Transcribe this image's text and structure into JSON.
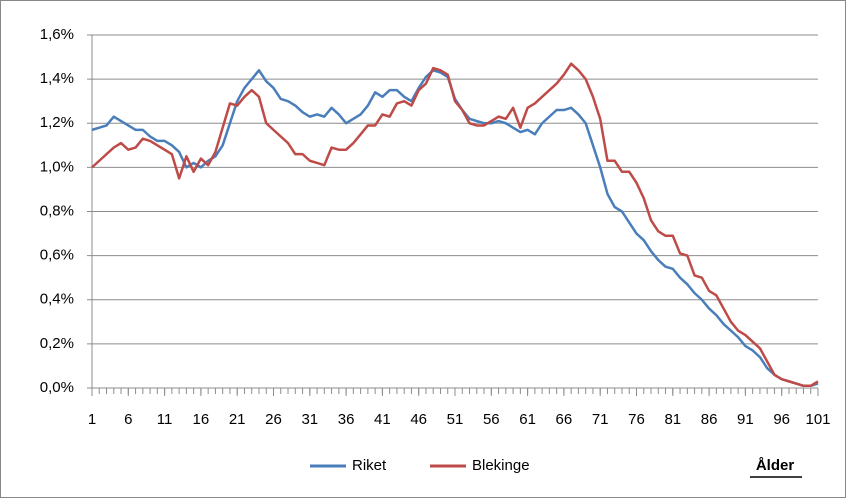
{
  "chart_data": {
    "type": "line",
    "x": [
      1,
      2,
      3,
      4,
      5,
      6,
      7,
      8,
      9,
      10,
      11,
      12,
      13,
      14,
      15,
      16,
      17,
      18,
      19,
      20,
      21,
      22,
      23,
      24,
      25,
      26,
      27,
      28,
      29,
      30,
      31,
      32,
      33,
      34,
      35,
      36,
      37,
      38,
      39,
      40,
      41,
      42,
      43,
      44,
      45,
      46,
      47,
      48,
      49,
      50,
      51,
      52,
      53,
      54,
      55,
      56,
      57,
      58,
      59,
      60,
      61,
      62,
      63,
      64,
      65,
      66,
      67,
      68,
      69,
      70,
      71,
      72,
      73,
      74,
      75,
      76,
      77,
      78,
      79,
      80,
      81,
      82,
      83,
      84,
      85,
      86,
      87,
      88,
      89,
      90,
      91,
      92,
      93,
      94,
      95,
      96,
      97,
      98,
      99,
      100,
      101
    ],
    "series": [
      {
        "name": "Riket",
        "color": "#4a7ebb",
        "values": [
          1.17,
          1.18,
          1.19,
          1.23,
          1.21,
          1.19,
          1.17,
          1.17,
          1.14,
          1.12,
          1.12,
          1.1,
          1.07,
          1.0,
          1.02,
          1.0,
          1.03,
          1.05,
          1.1,
          1.2,
          1.3,
          1.36,
          1.4,
          1.44,
          1.39,
          1.36,
          1.31,
          1.3,
          1.28,
          1.25,
          1.23,
          1.24,
          1.23,
          1.27,
          1.24,
          1.2,
          1.22,
          1.24,
          1.28,
          1.34,
          1.32,
          1.35,
          1.35,
          1.32,
          1.3,
          1.36,
          1.41,
          1.44,
          1.43,
          1.41,
          1.31,
          1.26,
          1.22,
          1.21,
          1.2,
          1.2,
          1.21,
          1.2,
          1.18,
          1.16,
          1.17,
          1.15,
          1.2,
          1.23,
          1.26,
          1.26,
          1.27,
          1.24,
          1.2,
          1.1,
          1.0,
          0.88,
          0.82,
          0.8,
          0.75,
          0.7,
          0.67,
          0.62,
          0.58,
          0.55,
          0.54,
          0.5,
          0.47,
          0.43,
          0.4,
          0.36,
          0.33,
          0.29,
          0.26,
          0.23,
          0.19,
          0.17,
          0.14,
          0.09,
          0.06,
          0.04,
          0.03,
          0.02,
          0.01,
          0.01,
          0.02
        ]
      },
      {
        "name": "Blekinge",
        "color": "#be4b48",
        "values": [
          1.0,
          1.03,
          1.06,
          1.09,
          1.11,
          1.08,
          1.09,
          1.13,
          1.12,
          1.1,
          1.08,
          1.06,
          0.95,
          1.05,
          0.98,
          1.04,
          1.01,
          1.07,
          1.18,
          1.29,
          1.28,
          1.32,
          1.35,
          1.32,
          1.2,
          1.17,
          1.14,
          1.11,
          1.06,
          1.06,
          1.03,
          1.02,
          1.01,
          1.09,
          1.08,
          1.08,
          1.11,
          1.15,
          1.19,
          1.19,
          1.24,
          1.23,
          1.29,
          1.3,
          1.28,
          1.35,
          1.38,
          1.45,
          1.44,
          1.42,
          1.3,
          1.26,
          1.2,
          1.19,
          1.19,
          1.21,
          1.23,
          1.22,
          1.27,
          1.18,
          1.27,
          1.29,
          1.32,
          1.35,
          1.38,
          1.42,
          1.47,
          1.44,
          1.4,
          1.32,
          1.22,
          1.03,
          1.03,
          0.98,
          0.98,
          0.93,
          0.86,
          0.76,
          0.71,
          0.69,
          0.69,
          0.61,
          0.6,
          0.51,
          0.5,
          0.44,
          0.42,
          0.36,
          0.3,
          0.26,
          0.24,
          0.21,
          0.18,
          0.12,
          0.06,
          0.04,
          0.03,
          0.02,
          0.01,
          0.01,
          0.03
        ]
      }
    ],
    "xlabel": "Ålder",
    "xlim": [
      1,
      101
    ],
    "xticks": [
      1,
      6,
      11,
      16,
      21,
      26,
      31,
      36,
      41,
      46,
      51,
      56,
      61,
      66,
      71,
      76,
      81,
      86,
      91,
      96,
      101
    ],
    "ylim": [
      0,
      1.6
    ],
    "yticks": [
      {
        "value": 0,
        "label": "0,0%"
      },
      {
        "value": 0.2,
        "label": "0,2%"
      },
      {
        "value": 0.4,
        "label": "0,4%"
      },
      {
        "value": 0.6,
        "label": "0,6%"
      },
      {
        "value": 0.8,
        "label": "0,8%"
      },
      {
        "value": 1.0,
        "label": "1,0%"
      },
      {
        "value": 1.2,
        "label": "1,2%"
      },
      {
        "value": 1.4,
        "label": "1,4%"
      },
      {
        "value": 1.6,
        "label": "1,6%"
      }
    ],
    "grid": true,
    "legend": "bottom"
  }
}
